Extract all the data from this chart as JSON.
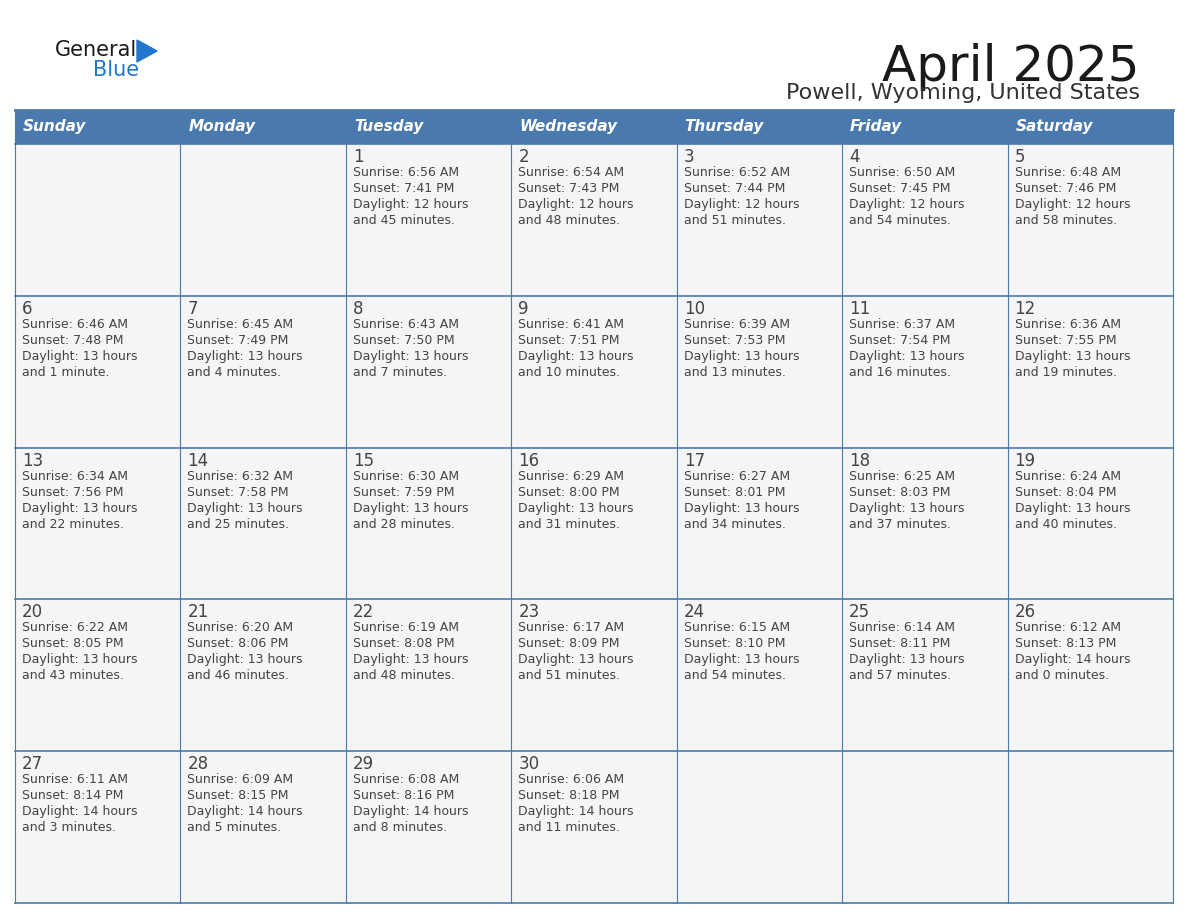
{
  "title": "April 2025",
  "subtitle": "Powell, Wyoming, United States",
  "header_bg_color": "#4a7aad",
  "header_text_color": "#ffffff",
  "cell_bg_color": "#f5f5f5",
  "border_color": "#4a7aad",
  "text_color": "#444444",
  "days_of_week": [
    "Sunday",
    "Monday",
    "Tuesday",
    "Wednesday",
    "Thursday",
    "Friday",
    "Saturday"
  ],
  "logo_color1": "#1a1a1a",
  "logo_color2": "#2277cc",
  "title_fontsize": 36,
  "subtitle_fontsize": 16,
  "header_fontsize": 11,
  "day_num_fontsize": 12,
  "cell_text_fontsize": 9,
  "weeks": [
    [
      {
        "day": "",
        "sunrise": "",
        "sunset": "",
        "daylight": ""
      },
      {
        "day": "",
        "sunrise": "",
        "sunset": "",
        "daylight": ""
      },
      {
        "day": "1",
        "sunrise": "Sunrise: 6:56 AM",
        "sunset": "Sunset: 7:41 PM",
        "daylight": "Daylight: 12 hours\nand 45 minutes."
      },
      {
        "day": "2",
        "sunrise": "Sunrise: 6:54 AM",
        "sunset": "Sunset: 7:43 PM",
        "daylight": "Daylight: 12 hours\nand 48 minutes."
      },
      {
        "day": "3",
        "sunrise": "Sunrise: 6:52 AM",
        "sunset": "Sunset: 7:44 PM",
        "daylight": "Daylight: 12 hours\nand 51 minutes."
      },
      {
        "day": "4",
        "sunrise": "Sunrise: 6:50 AM",
        "sunset": "Sunset: 7:45 PM",
        "daylight": "Daylight: 12 hours\nand 54 minutes."
      },
      {
        "day": "5",
        "sunrise": "Sunrise: 6:48 AM",
        "sunset": "Sunset: 7:46 PM",
        "daylight": "Daylight: 12 hours\nand 58 minutes."
      }
    ],
    [
      {
        "day": "6",
        "sunrise": "Sunrise: 6:46 AM",
        "sunset": "Sunset: 7:48 PM",
        "daylight": "Daylight: 13 hours\nand 1 minute."
      },
      {
        "day": "7",
        "sunrise": "Sunrise: 6:45 AM",
        "sunset": "Sunset: 7:49 PM",
        "daylight": "Daylight: 13 hours\nand 4 minutes."
      },
      {
        "day": "8",
        "sunrise": "Sunrise: 6:43 AM",
        "sunset": "Sunset: 7:50 PM",
        "daylight": "Daylight: 13 hours\nand 7 minutes."
      },
      {
        "day": "9",
        "sunrise": "Sunrise: 6:41 AM",
        "sunset": "Sunset: 7:51 PM",
        "daylight": "Daylight: 13 hours\nand 10 minutes."
      },
      {
        "day": "10",
        "sunrise": "Sunrise: 6:39 AM",
        "sunset": "Sunset: 7:53 PM",
        "daylight": "Daylight: 13 hours\nand 13 minutes."
      },
      {
        "day": "11",
        "sunrise": "Sunrise: 6:37 AM",
        "sunset": "Sunset: 7:54 PM",
        "daylight": "Daylight: 13 hours\nand 16 minutes."
      },
      {
        "day": "12",
        "sunrise": "Sunrise: 6:36 AM",
        "sunset": "Sunset: 7:55 PM",
        "daylight": "Daylight: 13 hours\nand 19 minutes."
      }
    ],
    [
      {
        "day": "13",
        "sunrise": "Sunrise: 6:34 AM",
        "sunset": "Sunset: 7:56 PM",
        "daylight": "Daylight: 13 hours\nand 22 minutes."
      },
      {
        "day": "14",
        "sunrise": "Sunrise: 6:32 AM",
        "sunset": "Sunset: 7:58 PM",
        "daylight": "Daylight: 13 hours\nand 25 minutes."
      },
      {
        "day": "15",
        "sunrise": "Sunrise: 6:30 AM",
        "sunset": "Sunset: 7:59 PM",
        "daylight": "Daylight: 13 hours\nand 28 minutes."
      },
      {
        "day": "16",
        "sunrise": "Sunrise: 6:29 AM",
        "sunset": "Sunset: 8:00 PM",
        "daylight": "Daylight: 13 hours\nand 31 minutes."
      },
      {
        "day": "17",
        "sunrise": "Sunrise: 6:27 AM",
        "sunset": "Sunset: 8:01 PM",
        "daylight": "Daylight: 13 hours\nand 34 minutes."
      },
      {
        "day": "18",
        "sunrise": "Sunrise: 6:25 AM",
        "sunset": "Sunset: 8:03 PM",
        "daylight": "Daylight: 13 hours\nand 37 minutes."
      },
      {
        "day": "19",
        "sunrise": "Sunrise: 6:24 AM",
        "sunset": "Sunset: 8:04 PM",
        "daylight": "Daylight: 13 hours\nand 40 minutes."
      }
    ],
    [
      {
        "day": "20",
        "sunrise": "Sunrise: 6:22 AM",
        "sunset": "Sunset: 8:05 PM",
        "daylight": "Daylight: 13 hours\nand 43 minutes."
      },
      {
        "day": "21",
        "sunrise": "Sunrise: 6:20 AM",
        "sunset": "Sunset: 8:06 PM",
        "daylight": "Daylight: 13 hours\nand 46 minutes."
      },
      {
        "day": "22",
        "sunrise": "Sunrise: 6:19 AM",
        "sunset": "Sunset: 8:08 PM",
        "daylight": "Daylight: 13 hours\nand 48 minutes."
      },
      {
        "day": "23",
        "sunrise": "Sunrise: 6:17 AM",
        "sunset": "Sunset: 8:09 PM",
        "daylight": "Daylight: 13 hours\nand 51 minutes."
      },
      {
        "day": "24",
        "sunrise": "Sunrise: 6:15 AM",
        "sunset": "Sunset: 8:10 PM",
        "daylight": "Daylight: 13 hours\nand 54 minutes."
      },
      {
        "day": "25",
        "sunrise": "Sunrise: 6:14 AM",
        "sunset": "Sunset: 8:11 PM",
        "daylight": "Daylight: 13 hours\nand 57 minutes."
      },
      {
        "day": "26",
        "sunrise": "Sunrise: 6:12 AM",
        "sunset": "Sunset: 8:13 PM",
        "daylight": "Daylight: 14 hours\nand 0 minutes."
      }
    ],
    [
      {
        "day": "27",
        "sunrise": "Sunrise: 6:11 AM",
        "sunset": "Sunset: 8:14 PM",
        "daylight": "Daylight: 14 hours\nand 3 minutes."
      },
      {
        "day": "28",
        "sunrise": "Sunrise: 6:09 AM",
        "sunset": "Sunset: 8:15 PM",
        "daylight": "Daylight: 14 hours\nand 5 minutes."
      },
      {
        "day": "29",
        "sunrise": "Sunrise: 6:08 AM",
        "sunset": "Sunset: 8:16 PM",
        "daylight": "Daylight: 14 hours\nand 8 minutes."
      },
      {
        "day": "30",
        "sunrise": "Sunrise: 6:06 AM",
        "sunset": "Sunset: 8:18 PM",
        "daylight": "Daylight: 14 hours\nand 11 minutes."
      },
      {
        "day": "",
        "sunrise": "",
        "sunset": "",
        "daylight": ""
      },
      {
        "day": "",
        "sunrise": "",
        "sunset": "",
        "daylight": ""
      },
      {
        "day": "",
        "sunrise": "",
        "sunset": "",
        "daylight": ""
      }
    ]
  ]
}
